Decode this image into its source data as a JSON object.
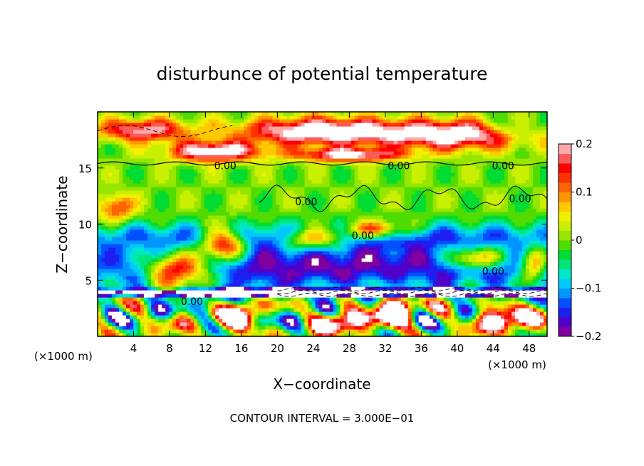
{
  "chart_data": {
    "type": "heatmap",
    "title": "disturbunce of potential temperature",
    "xlabel": "X−coordinate",
    "ylabel": "Z−coordinate",
    "x_unit": "(×1000 m)",
    "x_unit_right": "(×1000 m)",
    "footnote": "CONTOUR INTERVAL = 3.000E−01",
    "xlim": [
      0,
      50
    ],
    "ylim": [
      0,
      20
    ],
    "x_ticks": [
      4,
      8,
      12,
      16,
      20,
      24,
      28,
      32,
      36,
      40,
      44,
      48
    ],
    "x_tick_labels": [
      "4",
      "8",
      "12",
      "16",
      "20",
      "24",
      "28",
      "32",
      "36",
      "40",
      "44",
      "48"
    ],
    "y_ticks": [
      5,
      10,
      15
    ],
    "y_tick_labels": [
      "5",
      "10",
      "15"
    ],
    "colorbar": {
      "range": [
        -0.2,
        0.2
      ],
      "ticks": [
        0.2,
        0.1,
        0,
        -0.1,
        -0.2
      ],
      "tick_labels": [
        "0.2",
        "0.1",
        "0",
        "−0.1",
        "−0.2"
      ],
      "colors": [
        "#8000a0",
        "#5000c8",
        "#1e1ef0",
        "#0050ff",
        "#0096ff",
        "#00c8ff",
        "#00e6c8",
        "#00e678",
        "#00dc32",
        "#50dc00",
        "#96e600",
        "#c8f000",
        "#f0f000",
        "#ffc800",
        "#ff9600",
        "#ff6400",
        "#ff3200",
        "#ff0000",
        "#ff5a5a",
        "#ffaaaa"
      ]
    },
    "contour_labels": [
      {
        "text": "0.00",
        "x": 14.2,
        "z": 15.2
      },
      {
        "text": "0.00",
        "x": 33.5,
        "z": 15.2
      },
      {
        "text": "0.00",
        "x": 45.1,
        "z": 15.2
      },
      {
        "text": "0.00",
        "x": 47.0,
        "z": 12.3
      },
      {
        "text": "0.00",
        "x": 23.2,
        "z": 12.0
      },
      {
        "text": "0.00",
        "x": 29.5,
        "z": 9.0
      },
      {
        "text": "0.00",
        "x": 10.5,
        "z": 3.1
      },
      {
        "text": "0.00",
        "x": 44.0,
        "z": 5.8
      }
    ]
  }
}
